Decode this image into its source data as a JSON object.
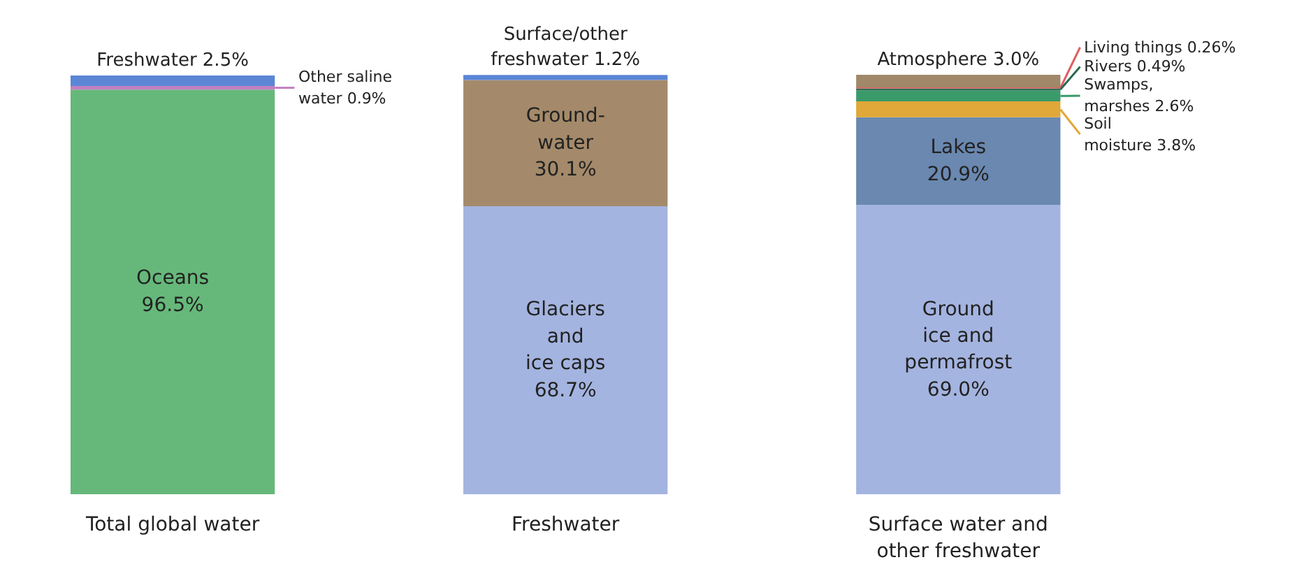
{
  "chart_data": {
    "type": "bar",
    "stacked": true,
    "categories": [
      "Total global water",
      "Freshwater",
      "Surface water and\nother freshwater"
    ],
    "tick_labels": "x",
    "series": [
      {
        "name": "Oceans",
        "color": "#66b87a",
        "values": [
          96.5,
          null,
          null
        ],
        "value_labels": [
          "96.5%",
          null,
          null
        ]
      },
      {
        "name": "Other saline\nwater",
        "color": "#c080c0",
        "values": [
          0.9,
          null,
          null
        ],
        "value_labels": [
          "0.9%",
          null,
          null
        ]
      },
      {
        "name": "Freshwater",
        "color": "#5b86d6",
        "values": [
          2.5,
          null,
          null
        ],
        "value_labels": [
          "2.5%",
          null,
          null
        ]
      },
      {
        "name": "Glaciers\nand\nice caps",
        "color": "#a4b4e0",
        "values": [
          null,
          68.7,
          null
        ],
        "value_labels": [
          null,
          "68.7%",
          null
        ]
      },
      {
        "name": "Ground-\nwater",
        "color": "#a48a6a",
        "values": [
          null,
          30.1,
          null
        ],
        "value_labels": [
          null,
          "30.1%",
          null
        ]
      },
      {
        "name": "Surface/other\nfreshwater",
        "color": "#5b86d6",
        "values": [
          null,
          1.2,
          null
        ],
        "value_labels": [
          null,
          "1.2%",
          null
        ]
      },
      {
        "name": "Ground\nice and\npermafrost",
        "color": "#a4b4e0",
        "values": [
          null,
          null,
          69.0
        ],
        "value_labels": [
          null,
          null,
          "69.0%"
        ]
      },
      {
        "name": "Lakes",
        "color": "#6a88b0",
        "values": [
          null,
          null,
          20.9
        ],
        "value_labels": [
          null,
          null,
          "20.9%"
        ]
      },
      {
        "name": "Soil\nmoisture",
        "color": "#e0a838",
        "values": [
          null,
          null,
          3.8
        ],
        "value_labels": [
          null,
          null,
          "3.8%"
        ]
      },
      {
        "name": "Swamps,\nmarshes",
        "color": "#3a9a6a",
        "values": [
          null,
          null,
          2.6
        ],
        "value_labels": [
          null,
          null,
          "2.6%"
        ]
      },
      {
        "name": "Rivers",
        "color": "#2a6a50",
        "values": [
          null,
          null,
          0.49
        ],
        "value_labels": [
          null,
          null,
          "0.49%"
        ]
      },
      {
        "name": "Living things",
        "color": "#e06060",
        "values": [
          null,
          null,
          0.26
        ],
        "value_labels": [
          null,
          null,
          "0.26%"
        ]
      },
      {
        "name": "Atmosphere",
        "color": "#a08868",
        "values": [
          null,
          null,
          3.0
        ],
        "value_labels": [
          null,
          null,
          "3.0%"
        ]
      }
    ]
  }
}
